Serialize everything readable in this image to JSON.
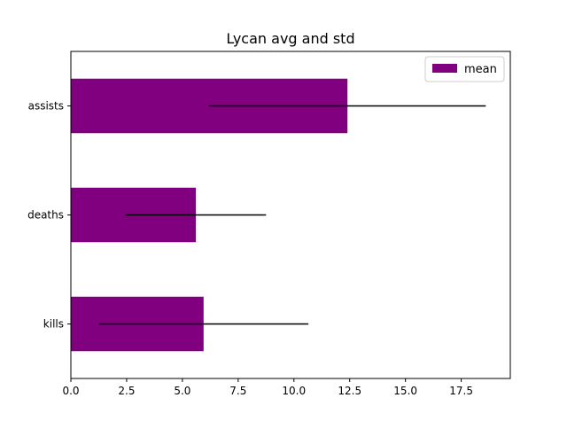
{
  "chart_data": {
    "type": "bar",
    "orientation": "horizontal",
    "title": "Lycan avg and std",
    "xlabel": "",
    "ylabel": "",
    "categories": [
      "kills",
      "deaths",
      "assists"
    ],
    "series": [
      {
        "name": "mean",
        "values": [
          5.95,
          5.6,
          12.4
        ],
        "error": [
          4.7,
          3.15,
          6.2
        ],
        "color": "#800080"
      }
    ],
    "xlim": [
      0,
      19.7
    ],
    "xticks": [
      0.0,
      2.5,
      5.0,
      7.5,
      10.0,
      12.5,
      15.0,
      17.5
    ],
    "xtick_labels": [
      "0.0",
      "2.5",
      "5.0",
      "7.5",
      "10.0",
      "12.5",
      "15.0",
      "17.5"
    ],
    "grid": false,
    "legend_position": "top-right",
    "errorbar_color": "#000000"
  }
}
